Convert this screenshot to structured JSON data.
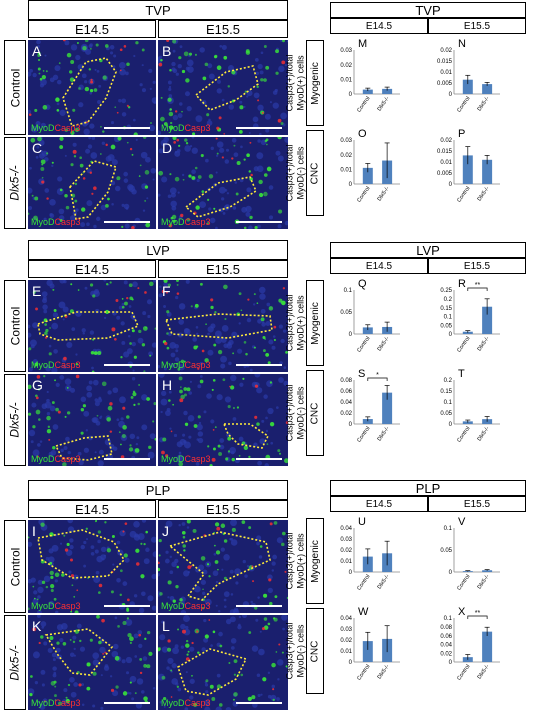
{
  "sections": [
    {
      "title": "TVP",
      "col_labels": [
        "E14.5",
        "E15.5"
      ],
      "row_labels": [
        "Control",
        "Dlx5-/-"
      ],
      "panels": [
        "A",
        "B",
        "C",
        "D"
      ]
    },
    {
      "title": "LVP",
      "col_labels": [
        "E14.5",
        "E15.5"
      ],
      "row_labels": [
        "Control",
        "Dlx5-/-"
      ],
      "panels": [
        "E",
        "F",
        "G",
        "H"
      ]
    },
    {
      "title": "PLP",
      "col_labels": [
        "E14.5",
        "E15.5"
      ],
      "row_labels": [
        "Control",
        "Dlx5-/-"
      ],
      "panels": [
        "I",
        "J",
        "K",
        "L"
      ]
    }
  ],
  "stain": {
    "green": "MyoD",
    "red": "Casp3"
  },
  "colors": {
    "bar": "#4f81bd",
    "bg": "#1a1f6e",
    "green": "#39e639",
    "red": "#ff3030",
    "outline": "#ffeb3b"
  },
  "row_cat_labels": [
    "Myogenic",
    "CNC"
  ],
  "ylabel_top": [
    "Casp3(+)/total",
    "MyoD(+) cells"
  ],
  "ylabel_bottom": [
    "Casp3(+)/total",
    "MyoD(-) cells"
  ],
  "chart_data": [
    {
      "panel": "M",
      "type": "bar",
      "section": "TVP",
      "stage": "E14.5",
      "group": "Myogenic",
      "categories": [
        "Control",
        "Dlx5-/-"
      ],
      "values": [
        0.003,
        0.0035
      ],
      "errors": [
        0.001,
        0.0012
      ],
      "ylim": [
        0,
        0.03
      ],
      "yticks": [
        "0",
        "0.01",
        "0.02",
        "0.03"
      ],
      "sig": ""
    },
    {
      "panel": "N",
      "type": "bar",
      "section": "TVP",
      "stage": "E15.5",
      "group": "Myogenic",
      "categories": [
        "Control",
        "Dlx5-/-"
      ],
      "values": [
        0.0065,
        0.0045
      ],
      "errors": [
        0.002,
        0.0008
      ],
      "ylim": [
        0,
        0.02
      ],
      "yticks": [
        "0",
        "0.005",
        "0.01",
        "0.015",
        "0.02"
      ],
      "sig": ""
    },
    {
      "panel": "O",
      "type": "bar",
      "section": "TVP",
      "stage": "E14.5",
      "group": "CNC",
      "categories": [
        "Control",
        "Dlx5-/-"
      ],
      "values": [
        0.011,
        0.016
      ],
      "errors": [
        0.003,
        0.012
      ],
      "ylim": [
        0,
        0.03
      ],
      "yticks": [
        "0",
        "0.01",
        "0.02",
        "0.03"
      ],
      "sig": ""
    },
    {
      "panel": "P",
      "type": "bar",
      "section": "TVP",
      "stage": "E15.5",
      "group": "CNC",
      "categories": [
        "Control",
        "Dlx5-/-"
      ],
      "values": [
        0.013,
        0.011
      ],
      "errors": [
        0.004,
        0.002
      ],
      "ylim": [
        0,
        0.02
      ],
      "yticks": [
        "0",
        "0.005",
        "0.01",
        "0.015",
        "0.02"
      ],
      "sig": ""
    },
    {
      "panel": "Q",
      "type": "bar",
      "section": "LVP",
      "stage": "E14.5",
      "group": "Myogenic",
      "categories": [
        "Control",
        "Dlx5-/-"
      ],
      "values": [
        0.015,
        0.016
      ],
      "errors": [
        0.006,
        0.011
      ],
      "ylim": [
        0,
        0.1
      ],
      "yticks": [
        "0",
        "0.05",
        "0.1"
      ],
      "sig": ""
    },
    {
      "panel": "R",
      "type": "bar",
      "section": "LVP",
      "stage": "E15.5",
      "group": "Myogenic",
      "categories": [
        "Control",
        "Dlx5-/-"
      ],
      "values": [
        0.013,
        0.155
      ],
      "errors": [
        0.006,
        0.045
      ],
      "ylim": [
        0,
        0.25
      ],
      "yticks": [
        "0",
        "0.05",
        "0.1",
        "0.15",
        "0.2",
        "0.25"
      ],
      "sig": "**"
    },
    {
      "panel": "S",
      "type": "bar",
      "section": "LVP",
      "stage": "E14.5",
      "group": "CNC",
      "categories": [
        "Control",
        "Dlx5-/-"
      ],
      "values": [
        0.009,
        0.057
      ],
      "errors": [
        0.004,
        0.013
      ],
      "ylim": [
        0,
        0.08
      ],
      "yticks": [
        "0",
        "0.02",
        "0.04",
        "0.06",
        "0.08"
      ],
      "sig": "*"
    },
    {
      "panel": "T",
      "type": "bar",
      "section": "LVP",
      "stage": "E15.5",
      "group": "CNC",
      "categories": [
        "Control",
        "Dlx5-/-"
      ],
      "values": [
        0.012,
        0.022
      ],
      "errors": [
        0.006,
        0.012
      ],
      "ylim": [
        0,
        0.2
      ],
      "yticks": [
        "0",
        "0.05",
        "0.1",
        "0.15",
        "0.2"
      ],
      "sig": ""
    },
    {
      "panel": "U",
      "type": "bar",
      "section": "PLP",
      "stage": "E14.5",
      "group": "Myogenic",
      "categories": [
        "Control",
        "Dlx5-/-"
      ],
      "values": [
        0.014,
        0.017
      ],
      "errors": [
        0.007,
        0.011
      ],
      "ylim": [
        0,
        0.04
      ],
      "yticks": [
        "0",
        "0.01",
        "0.02",
        "0.03",
        "0.04"
      ],
      "sig": ""
    },
    {
      "panel": "V",
      "type": "bar",
      "section": "PLP",
      "stage": "E15.5",
      "group": "Myogenic",
      "categories": [
        "Control",
        "Dlx5-/-"
      ],
      "values": [
        0.002,
        0.004
      ],
      "errors": [
        0.001,
        0.0015
      ],
      "ylim": [
        0,
        0.1
      ],
      "yticks": [
        "0",
        "0.05",
        "0.1"
      ],
      "sig": ""
    },
    {
      "panel": "W",
      "type": "bar",
      "section": "PLP",
      "stage": "E14.5",
      "group": "CNC",
      "categories": [
        "Control",
        "Dlx5-/-"
      ],
      "values": [
        0.019,
        0.021
      ],
      "errors": [
        0.008,
        0.012
      ],
      "ylim": [
        0,
        0.04
      ],
      "yticks": [
        "0",
        "0.01",
        "0.02",
        "0.03",
        "0.04"
      ],
      "sig": ""
    },
    {
      "panel": "X",
      "type": "bar",
      "section": "PLP",
      "stage": "E15.5",
      "group": "CNC",
      "categories": [
        "Control",
        "Dlx5-/-"
      ],
      "values": [
        0.011,
        0.069
      ],
      "errors": [
        0.006,
        0.01
      ],
      "ylim": [
        0,
        0.1
      ],
      "yticks": [
        "0",
        "0.02",
        "0.04",
        "0.06",
        "0.08",
        "0.1"
      ],
      "sig": "**"
    }
  ]
}
